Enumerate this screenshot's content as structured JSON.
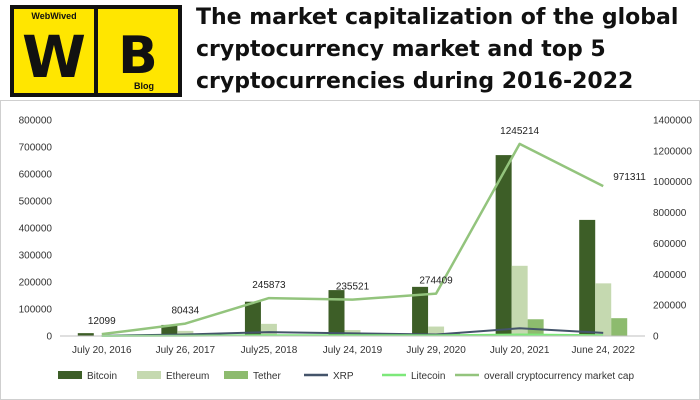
{
  "logo": {
    "top_text": "WebWived",
    "letter_left": "W",
    "letter_right": "B",
    "bottom_text": "Blog",
    "bg_color": "#ffe600",
    "ink_color": "#111111"
  },
  "headline": {
    "lines": [
      "The market capitalization of the global",
      "cryptocurrency market and top 5",
      "cryptocurrencies during 2016-2022"
    ]
  },
  "chart_data": {
    "type": "bar",
    "title": "",
    "categories": [
      "July 20, 2016",
      "July 26, 2017",
      "July25, 2018",
      "July 24, 2019",
      "July 29, 2020",
      "July 20, 2021",
      "June 24, 2022"
    ],
    "y_left": {
      "lim": [
        0,
        800000
      ],
      "ticks": [
        "0",
        "100000",
        "200000",
        "300000",
        "400000",
        "500000",
        "600000",
        "700000",
        "800000"
      ]
    },
    "y_right": {
      "lim": [
        0,
        1400000
      ],
      "ticks": [
        "0",
        "200000",
        "400000",
        "600000",
        "800000",
        "1000000",
        "1200000",
        "1400000"
      ]
    },
    "grid": false,
    "legend_position": "bottom",
    "series": [
      {
        "name": "Bitcoin",
        "kind": "bar",
        "axis": "left",
        "color": "#3d5e27",
        "values": [
          10600,
          41000,
          127000,
          170000,
          182000,
          670000,
          430000
        ]
      },
      {
        "name": "Ethereum",
        "kind": "bar",
        "axis": "left",
        "color": "#c5d9b0",
        "values": [
          1000,
          19000,
          45000,
          22000,
          35000,
          260000,
          195000
        ]
      },
      {
        "name": "Tether",
        "kind": "bar",
        "axis": "left",
        "color": "#8dbb6e",
        "values": [
          10,
          1000,
          3000,
          4000,
          10000,
          62000,
          66000
        ]
      },
      {
        "name": "XRP",
        "kind": "line",
        "axis": "right",
        "color": "#44546a",
        "values": [
          1000,
          10000,
          25000,
          17000,
          10000,
          50000,
          20000
        ]
      },
      {
        "name": "Litecoin",
        "kind": "line",
        "axis": "right",
        "color": "#7de87a",
        "values": [
          200,
          2000,
          5000,
          5000,
          4000,
          10000,
          5000
        ]
      },
      {
        "name": "overall cryptocurrency market cap",
        "kind": "line",
        "axis": "right",
        "color": "#93c47d",
        "values": [
          12099,
          80434,
          245873,
          235521,
          274409,
          1245214,
          971311
        ]
      }
    ],
    "data_labels": [
      "12099",
      "80434",
      "245873",
      "235521",
      "274409",
      "1245214",
      "971311"
    ]
  }
}
